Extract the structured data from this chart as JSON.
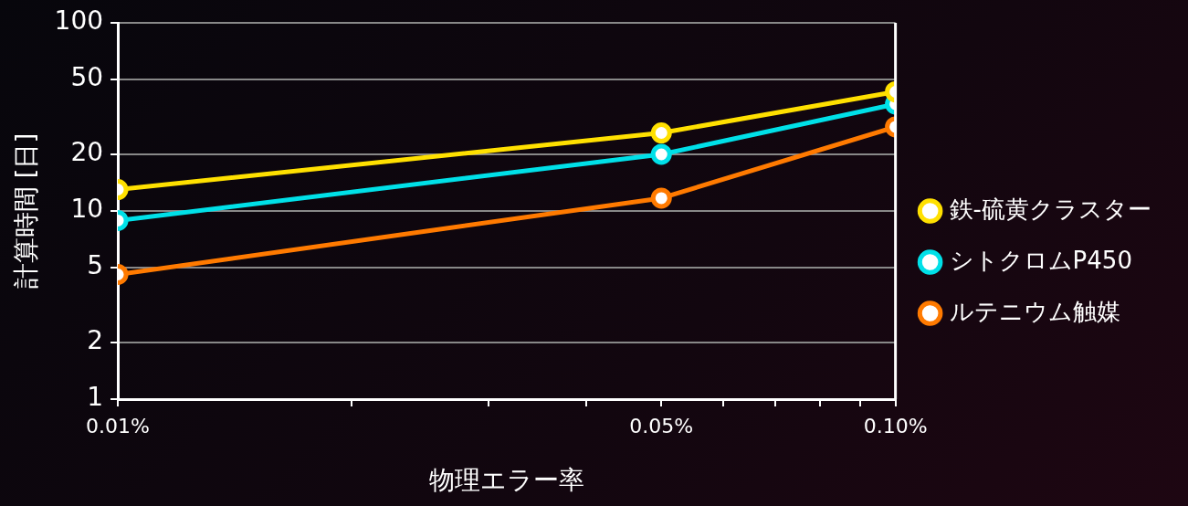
{
  "chart_data": {
    "type": "line",
    "xlabel": "物理エラー率",
    "ylabel": "計算時間 [日]",
    "log": "xy",
    "x": [
      0.01,
      0.05,
      0.1
    ],
    "xlim": [
      0.01,
      0.1
    ],
    "xticks": [
      {
        "value": 0.01,
        "label": "0.01%"
      },
      {
        "value": 0.02,
        "label": null
      },
      {
        "value": 0.03,
        "label": null
      },
      {
        "value": 0.04,
        "label": null
      },
      {
        "value": 0.05,
        "label": "0.05%"
      },
      {
        "value": 0.06,
        "label": null
      },
      {
        "value": 0.07,
        "label": null
      },
      {
        "value": 0.08,
        "label": null
      },
      {
        "value": 0.09,
        "label": null
      },
      {
        "value": 0.1,
        "label": "0.10%"
      }
    ],
    "ylim": [
      1,
      100
    ],
    "yticks": [
      1,
      2,
      5,
      10,
      20,
      50,
      100
    ],
    "grid": "y",
    "legend": "right",
    "marker": "circle",
    "line_style": "solid",
    "series": [
      {
        "name": "鉄-硫黄クラスター",
        "color": "#ffe000",
        "values": [
          13,
          26,
          43
        ]
      },
      {
        "name": "シトクロムP450",
        "color": "#00e0e8",
        "values": [
          8.9,
          20,
          37
        ]
      },
      {
        "name": "ルテニウム触媒",
        "color": "#ff7a00",
        "values": [
          4.6,
          11.7,
          28
        ]
      }
    ]
  }
}
